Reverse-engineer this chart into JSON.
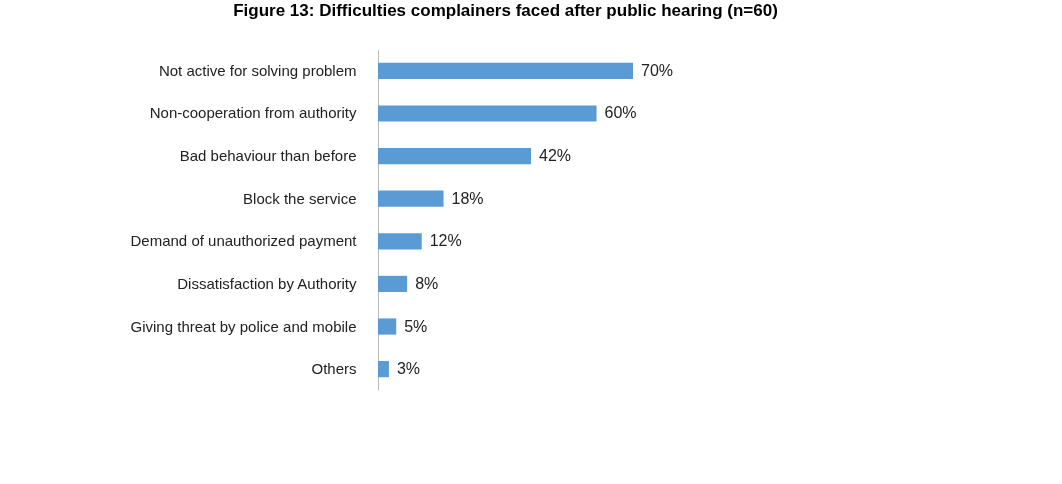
{
  "chart_data": {
    "type": "bar",
    "orientation": "horizontal",
    "title": "Figure 13: Difficulties complainers faced after public hearing (n=60)",
    "categories": [
      "Not active for solving problem",
      "Non-cooperation from authority",
      "Bad behaviour than before",
      "Block the service",
      "Demand of unauthorized payment",
      "Dissatisfaction by Authority",
      "Giving threat by police and mobile",
      "Others"
    ],
    "values": [
      70,
      60,
      42,
      18,
      12,
      8,
      5,
      3
    ],
    "value_labels": [
      "70%",
      "60%",
      "42%",
      "18%",
      "12%",
      "8%",
      "5%",
      "3%"
    ],
    "color": "#5b9bd5"
  }
}
